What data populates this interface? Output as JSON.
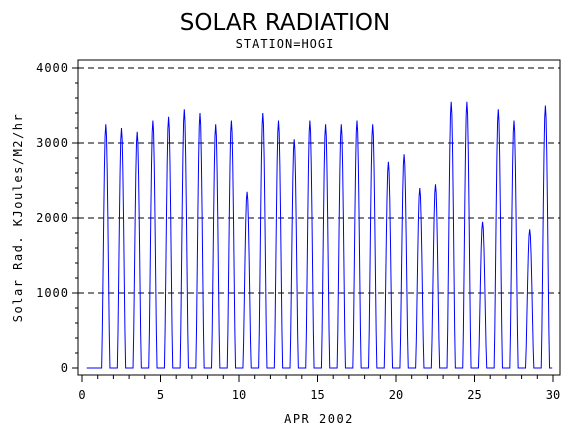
{
  "chart_data": {
    "type": "line",
    "title": "SOLAR RADIATION",
    "subtitle": "STATION=HOGI",
    "xlabel": "APR 2002",
    "ylabel": "Solar Rad. KJoules/M2/hr",
    "xlim": [
      0,
      30
    ],
    "ylim": [
      0,
      4000
    ],
    "x_ticks": [
      0,
      5,
      10,
      15,
      20,
      25,
      30
    ],
    "y_ticks": [
      0,
      1000,
      2000,
      3000,
      4000
    ],
    "y_tick_labels": [
      "0",
      "1000",
      "2000",
      "3000",
      "4000"
    ],
    "grid": "horizontal dashed at major y ticks",
    "line_color": "#0000ff",
    "daily_peaks": [
      {
        "day": 1,
        "peak": 3250
      },
      {
        "day": 2,
        "peak": 3200
      },
      {
        "day": 3,
        "peak": 3150
      },
      {
        "day": 4,
        "peak": 3300
      },
      {
        "day": 5,
        "peak": 3350
      },
      {
        "day": 6,
        "peak": 3450
      },
      {
        "day": 7,
        "peak": 3400
      },
      {
        "day": 8,
        "peak": 3250
      },
      {
        "day": 9,
        "peak": 3300
      },
      {
        "day": 10,
        "peak": 2350
      },
      {
        "day": 11,
        "peak": 3400
      },
      {
        "day": 12,
        "peak": 3300
      },
      {
        "day": 13,
        "peak": 3050
      },
      {
        "day": 14,
        "peak": 3300
      },
      {
        "day": 15,
        "peak": 3250
      },
      {
        "day": 16,
        "peak": 3250
      },
      {
        "day": 17,
        "peak": 3300
      },
      {
        "day": 18,
        "peak": 3250
      },
      {
        "day": 19,
        "peak": 2750
      },
      {
        "day": 20,
        "peak": 2850
      },
      {
        "day": 21,
        "peak": 2400
      },
      {
        "day": 22,
        "peak": 2450
      },
      {
        "day": 23,
        "peak": 3550
      },
      {
        "day": 24,
        "peak": 3550
      },
      {
        "day": 25,
        "peak": 1950
      },
      {
        "day": 26,
        "peak": 3450
      },
      {
        "day": 27,
        "peak": 3300
      },
      {
        "day": 28,
        "peak": 1850
      },
      {
        "day": 29,
        "peak": 3500
      }
    ]
  }
}
